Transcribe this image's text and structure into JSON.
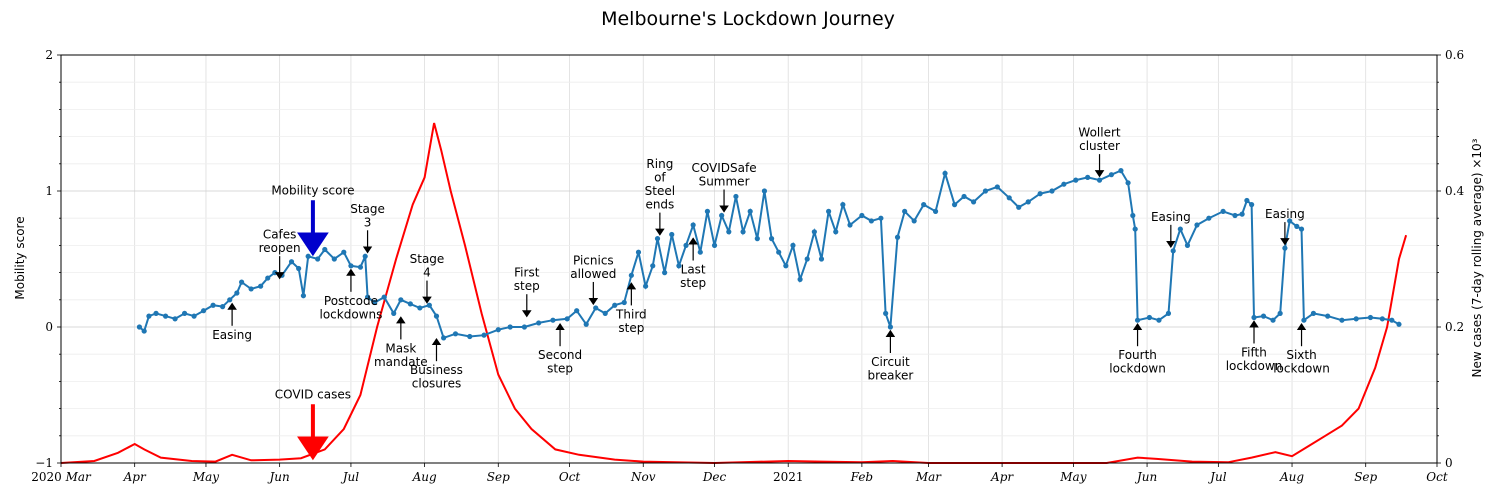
{
  "chart_data": {
    "type": "line",
    "title": "Melbourne's Lockdown Journey",
    "ylabel_left": "Mobility score",
    "ylabel_right": "New cases (7-day rolling  average) ×10³",
    "ylim_left": [
      -1,
      2
    ],
    "ylim_right": [
      0,
      0.6
    ],
    "xlim": [
      "2020-03-01",
      "2021-10-01"
    ],
    "grid": true,
    "left_ticks": [
      "2",
      "1",
      "0",
      "−1"
    ],
    "left_tick_values": [
      2,
      1,
      0,
      -1
    ],
    "right_ticks": [
      "0.6",
      "0.4",
      "0.2",
      "0"
    ],
    "right_tick_values": [
      0.6,
      0.4,
      0.2,
      0
    ],
    "x_ticks": [
      {
        "date": "2020-03-01",
        "label": "2020",
        "sub": "Mar"
      },
      {
        "date": "2020-04-01",
        "label": "Apr"
      },
      {
        "date": "2020-05-01",
        "label": "May"
      },
      {
        "date": "2020-06-01",
        "label": "Jun"
      },
      {
        "date": "2020-07-01",
        "label": "Jul"
      },
      {
        "date": "2020-08-01",
        "label": "Aug"
      },
      {
        "date": "2020-09-01",
        "label": "Sep"
      },
      {
        "date": "2020-10-01",
        "label": "Oct"
      },
      {
        "date": "2020-11-01",
        "label": "Nov"
      },
      {
        "date": "2020-12-01",
        "label": "Dec"
      },
      {
        "date": "2021-01-01",
        "label": "2021",
        "roman": true
      },
      {
        "date": "2021-02-01",
        "label": "Feb"
      },
      {
        "date": "2021-03-01",
        "label": "Mar"
      },
      {
        "date": "2021-04-01",
        "label": "Apr"
      },
      {
        "date": "2021-05-01",
        "label": "May"
      },
      {
        "date": "2021-06-01",
        "label": "Jun"
      },
      {
        "date": "2021-07-01",
        "label": "Jul"
      },
      {
        "date": "2021-08-01",
        "label": "Aug"
      },
      {
        "date": "2021-09-01",
        "label": "Sep"
      },
      {
        "date": "2021-10-01",
        "label": "Oct"
      }
    ],
    "series": [
      {
        "name": "Mobility score",
        "axis": "left",
        "color": "#1f77b4",
        "points": [
          [
            "2020-04-03",
            0.0
          ],
          [
            "2020-04-05",
            -0.03
          ],
          [
            "2020-04-07",
            0.08
          ],
          [
            "2020-04-10",
            0.1
          ],
          [
            "2020-04-14",
            0.08
          ],
          [
            "2020-04-18",
            0.06
          ],
          [
            "2020-04-22",
            0.1
          ],
          [
            "2020-04-26",
            0.08
          ],
          [
            "2020-04-30",
            0.12
          ],
          [
            "2020-05-04",
            0.16
          ],
          [
            "2020-05-08",
            0.15
          ],
          [
            "2020-05-11",
            0.2
          ],
          [
            "2020-05-14",
            0.25
          ],
          [
            "2020-05-16",
            0.33
          ],
          [
            "2020-05-20",
            0.28
          ],
          [
            "2020-05-24",
            0.3
          ],
          [
            "2020-05-27",
            0.36
          ],
          [
            "2020-05-30",
            0.4
          ],
          [
            "2020-06-02",
            0.38
          ],
          [
            "2020-06-06",
            0.48
          ],
          [
            "2020-06-09",
            0.43
          ],
          [
            "2020-06-11",
            0.23
          ],
          [
            "2020-06-13",
            0.52
          ],
          [
            "2020-06-17",
            0.5
          ],
          [
            "2020-06-20",
            0.57
          ],
          [
            "2020-06-24",
            0.5
          ],
          [
            "2020-06-28",
            0.55
          ],
          [
            "2020-07-01",
            0.45
          ],
          [
            "2020-07-05",
            0.44
          ],
          [
            "2020-07-07",
            0.52
          ],
          [
            "2020-07-08",
            0.22
          ],
          [
            "2020-07-11",
            0.18
          ],
          [
            "2020-07-15",
            0.22
          ],
          [
            "2020-07-19",
            0.1
          ],
          [
            "2020-07-22",
            0.2
          ],
          [
            "2020-07-26",
            0.17
          ],
          [
            "2020-07-30",
            0.14
          ],
          [
            "2020-08-03",
            0.16
          ],
          [
            "2020-08-06",
            0.08
          ],
          [
            "2020-08-09",
            -0.08
          ],
          [
            "2020-08-14",
            -0.05
          ],
          [
            "2020-08-20",
            -0.07
          ],
          [
            "2020-08-26",
            -0.06
          ],
          [
            "2020-09-01",
            -0.02
          ],
          [
            "2020-09-06",
            0.0
          ],
          [
            "2020-09-12",
            0.0
          ],
          [
            "2020-09-18",
            0.03
          ],
          [
            "2020-09-24",
            0.05
          ],
          [
            "2020-09-30",
            0.06
          ],
          [
            "2020-10-04",
            0.12
          ],
          [
            "2020-10-08",
            0.02
          ],
          [
            "2020-10-12",
            0.14
          ],
          [
            "2020-10-16",
            0.1
          ],
          [
            "2020-10-20",
            0.16
          ],
          [
            "2020-10-24",
            0.18
          ],
          [
            "2020-10-27",
            0.38
          ],
          [
            "2020-10-30",
            0.55
          ],
          [
            "2020-11-02",
            0.3
          ],
          [
            "2020-11-05",
            0.45
          ],
          [
            "2020-11-07",
            0.65
          ],
          [
            "2020-11-10",
            0.4
          ],
          [
            "2020-11-13",
            0.68
          ],
          [
            "2020-11-16",
            0.45
          ],
          [
            "2020-11-19",
            0.6
          ],
          [
            "2020-11-22",
            0.75
          ],
          [
            "2020-11-25",
            0.55
          ],
          [
            "2020-11-28",
            0.85
          ],
          [
            "2020-12-01",
            0.6
          ],
          [
            "2020-12-04",
            0.82
          ],
          [
            "2020-12-07",
            0.7
          ],
          [
            "2020-12-10",
            0.96
          ],
          [
            "2020-12-13",
            0.7
          ],
          [
            "2020-12-16",
            0.85
          ],
          [
            "2020-12-19",
            0.65
          ],
          [
            "2020-12-22",
            1.0
          ],
          [
            "2020-12-25",
            0.65
          ],
          [
            "2020-12-28",
            0.55
          ],
          [
            "2020-12-31",
            0.45
          ],
          [
            "2021-01-03",
            0.6
          ],
          [
            "2021-01-06",
            0.35
          ],
          [
            "2021-01-09",
            0.5
          ],
          [
            "2021-01-12",
            0.7
          ],
          [
            "2021-01-15",
            0.5
          ],
          [
            "2021-01-18",
            0.85
          ],
          [
            "2021-01-21",
            0.7
          ],
          [
            "2021-01-24",
            0.9
          ],
          [
            "2021-01-27",
            0.75
          ],
          [
            "2021-02-01",
            0.82
          ],
          [
            "2021-02-05",
            0.78
          ],
          [
            "2021-02-09",
            0.8
          ],
          [
            "2021-02-11",
            0.1
          ],
          [
            "2021-02-13",
            0.0
          ],
          [
            "2021-02-16",
            0.66
          ],
          [
            "2021-02-19",
            0.85
          ],
          [
            "2021-02-23",
            0.78
          ],
          [
            "2021-02-27",
            0.9
          ],
          [
            "2021-03-04",
            0.85
          ],
          [
            "2021-03-08",
            1.13
          ],
          [
            "2021-03-12",
            0.9
          ],
          [
            "2021-03-16",
            0.96
          ],
          [
            "2021-03-20",
            0.92
          ],
          [
            "2021-03-25",
            1.0
          ],
          [
            "2021-03-30",
            1.03
          ],
          [
            "2021-04-04",
            0.95
          ],
          [
            "2021-04-08",
            0.88
          ],
          [
            "2021-04-12",
            0.92
          ],
          [
            "2021-04-17",
            0.98
          ],
          [
            "2021-04-22",
            1.0
          ],
          [
            "2021-04-27",
            1.05
          ],
          [
            "2021-05-02",
            1.08
          ],
          [
            "2021-05-07",
            1.1
          ],
          [
            "2021-05-12",
            1.08
          ],
          [
            "2021-05-17",
            1.12
          ],
          [
            "2021-05-21",
            1.15
          ],
          [
            "2021-05-24",
            1.06
          ],
          [
            "2021-05-26",
            0.82
          ],
          [
            "2021-05-27",
            0.72
          ],
          [
            "2021-05-28",
            0.05
          ],
          [
            "2021-06-02",
            0.07
          ],
          [
            "2021-06-06",
            0.05
          ],
          [
            "2021-06-10",
            0.1
          ],
          [
            "2021-06-12",
            0.56
          ],
          [
            "2021-06-15",
            0.72
          ],
          [
            "2021-06-18",
            0.6
          ],
          [
            "2021-06-22",
            0.75
          ],
          [
            "2021-06-27",
            0.8
          ],
          [
            "2021-07-03",
            0.85
          ],
          [
            "2021-07-08",
            0.82
          ],
          [
            "2021-07-11",
            0.83
          ],
          [
            "2021-07-13",
            0.93
          ],
          [
            "2021-07-15",
            0.9
          ],
          [
            "2021-07-16",
            0.07
          ],
          [
            "2021-07-20",
            0.08
          ],
          [
            "2021-07-24",
            0.05
          ],
          [
            "2021-07-27",
            0.1
          ],
          [
            "2021-07-29",
            0.58
          ],
          [
            "2021-07-31",
            0.78
          ],
          [
            "2021-08-03",
            0.74
          ],
          [
            "2021-08-05",
            0.72
          ],
          [
            "2021-08-06",
            0.05
          ],
          [
            "2021-08-10",
            0.1
          ],
          [
            "2021-08-16",
            0.08
          ],
          [
            "2021-08-22",
            0.05
          ],
          [
            "2021-08-28",
            0.06
          ],
          [
            "2021-09-03",
            0.07
          ],
          [
            "2021-09-08",
            0.06
          ],
          [
            "2021-09-12",
            0.05
          ],
          [
            "2021-09-15",
            0.02
          ]
        ]
      },
      {
        "name": "COVID cases",
        "axis": "right",
        "color": "#ff0000",
        "points": [
          [
            "2020-03-01",
            0.0
          ],
          [
            "2020-03-15",
            0.003
          ],
          [
            "2020-03-25",
            0.015
          ],
          [
            "2020-04-01",
            0.028
          ],
          [
            "2020-04-05",
            0.02
          ],
          [
            "2020-04-12",
            0.008
          ],
          [
            "2020-04-25",
            0.003
          ],
          [
            "2020-05-05",
            0.002
          ],
          [
            "2020-05-12",
            0.012
          ],
          [
            "2020-05-20",
            0.004
          ],
          [
            "2020-06-01",
            0.005
          ],
          [
            "2020-06-10",
            0.007
          ],
          [
            "2020-06-20",
            0.02
          ],
          [
            "2020-06-28",
            0.05
          ],
          [
            "2020-07-05",
            0.1
          ],
          [
            "2020-07-12",
            0.2
          ],
          [
            "2020-07-20",
            0.3
          ],
          [
            "2020-07-27",
            0.38
          ],
          [
            "2020-08-01",
            0.42
          ],
          [
            "2020-08-05",
            0.5
          ],
          [
            "2020-08-08",
            0.46
          ],
          [
            "2020-08-12",
            0.4
          ],
          [
            "2020-08-18",
            0.32
          ],
          [
            "2020-08-25",
            0.22
          ],
          [
            "2020-09-01",
            0.13
          ],
          [
            "2020-09-08",
            0.08
          ],
          [
            "2020-09-15",
            0.05
          ],
          [
            "2020-09-25",
            0.02
          ],
          [
            "2020-10-05",
            0.012
          ],
          [
            "2020-10-20",
            0.005
          ],
          [
            "2020-11-01",
            0.002
          ],
          [
            "2020-12-01",
            0.0
          ],
          [
            "2021-01-01",
            0.003
          ],
          [
            "2021-01-15",
            0.002
          ],
          [
            "2021-02-01",
            0.001
          ],
          [
            "2021-02-14",
            0.003
          ],
          [
            "2021-03-01",
            0.0
          ],
          [
            "2021-05-15",
            0.0
          ],
          [
            "2021-05-28",
            0.008
          ],
          [
            "2021-06-05",
            0.006
          ],
          [
            "2021-06-20",
            0.002
          ],
          [
            "2021-07-05",
            0.001
          ],
          [
            "2021-07-15",
            0.008
          ],
          [
            "2021-07-25",
            0.016
          ],
          [
            "2021-08-01",
            0.01
          ],
          [
            "2021-08-08",
            0.025
          ],
          [
            "2021-08-15",
            0.04
          ],
          [
            "2021-08-22",
            0.055
          ],
          [
            "2021-08-29",
            0.08
          ],
          [
            "2021-09-05",
            0.14
          ],
          [
            "2021-09-10",
            0.2
          ],
          [
            "2021-09-15",
            0.3
          ],
          [
            "2021-09-18",
            0.335
          ]
        ]
      }
    ],
    "annotations": [
      {
        "lines": [
          "Easing"
        ],
        "date": "2020-05-12",
        "y": 0.2,
        "side": "below"
      },
      {
        "lines": [
          "Cafes",
          "reopen"
        ],
        "date": "2020-06-01",
        "y": 0.33,
        "side": "above"
      },
      {
        "lines": [
          "Postcode",
          "lockdowns"
        ],
        "date": "2020-07-01",
        "y": 0.45,
        "side": "below"
      },
      {
        "lines": [
          "Stage",
          "3"
        ],
        "date": "2020-07-08",
        "y": 0.52,
        "side": "above"
      },
      {
        "lines": [
          "Mask",
          "mandate"
        ],
        "date": "2020-07-22",
        "y": 0.1,
        "side": "below"
      },
      {
        "lines": [
          "Stage",
          "4"
        ],
        "date": "2020-08-02",
        "y": 0.15,
        "side": "above"
      },
      {
        "lines": [
          "Business",
          "closures"
        ],
        "date": "2020-08-06",
        "y": -0.06,
        "side": "below"
      },
      {
        "lines": [
          "First",
          "step"
        ],
        "date": "2020-09-13",
        "y": 0.05,
        "side": "above"
      },
      {
        "lines": [
          "Second",
          "step"
        ],
        "date": "2020-09-27",
        "y": 0.05,
        "side": "below"
      },
      {
        "lines": [
          "Picnics",
          "allowed"
        ],
        "date": "2020-10-11",
        "y": 0.14,
        "side": "above"
      },
      {
        "lines": [
          "Third",
          "step"
        ],
        "date": "2020-10-27",
        "y": 0.35,
        "side": "below"
      },
      {
        "lines": [
          "Ring",
          "of",
          "Steel",
          "ends"
        ],
        "date": "2020-11-08",
        "y": 0.65,
        "side": "above"
      },
      {
        "lines": [
          "Last",
          "step"
        ],
        "date": "2020-11-22",
        "y": 0.68,
        "side": "below"
      },
      {
        "lines": [
          "COVIDSafe",
          "Summer"
        ],
        "date": "2020-12-05",
        "y": 0.82,
        "side": "above"
      },
      {
        "lines": [
          "Circuit",
          "breaker"
        ],
        "date": "2021-02-13",
        "y": 0.0,
        "side": "below"
      },
      {
        "lines": [
          "Wollert",
          "cluster"
        ],
        "date": "2021-05-12",
        "y": 1.08,
        "side": "above"
      },
      {
        "lines": [
          "Fourth",
          "lockdown"
        ],
        "date": "2021-05-28",
        "y": 0.05,
        "side": "below"
      },
      {
        "lines": [
          "Easing"
        ],
        "date": "2021-06-11",
        "y": 0.56,
        "side": "above"
      },
      {
        "lines": [
          "Fifth",
          "lockdown"
        ],
        "date": "2021-07-16",
        "y": 0.07,
        "side": "below"
      },
      {
        "lines": [
          "Easing"
        ],
        "date": "2021-07-29",
        "y": 0.58,
        "side": "above"
      },
      {
        "lines": [
          "Sixth",
          "lockdown"
        ],
        "date": "2021-08-05",
        "y": 0.05,
        "side": "below"
      }
    ],
    "legend_arrows": [
      {
        "label": "Mobility score",
        "color": "#0000cc",
        "date": "2020-06-15",
        "axis": "left",
        "y": 0.52
      },
      {
        "label": "COVID cases",
        "color": "#ff0000",
        "date": "2020-06-15",
        "axis": "left",
        "y": -0.98
      }
    ]
  }
}
